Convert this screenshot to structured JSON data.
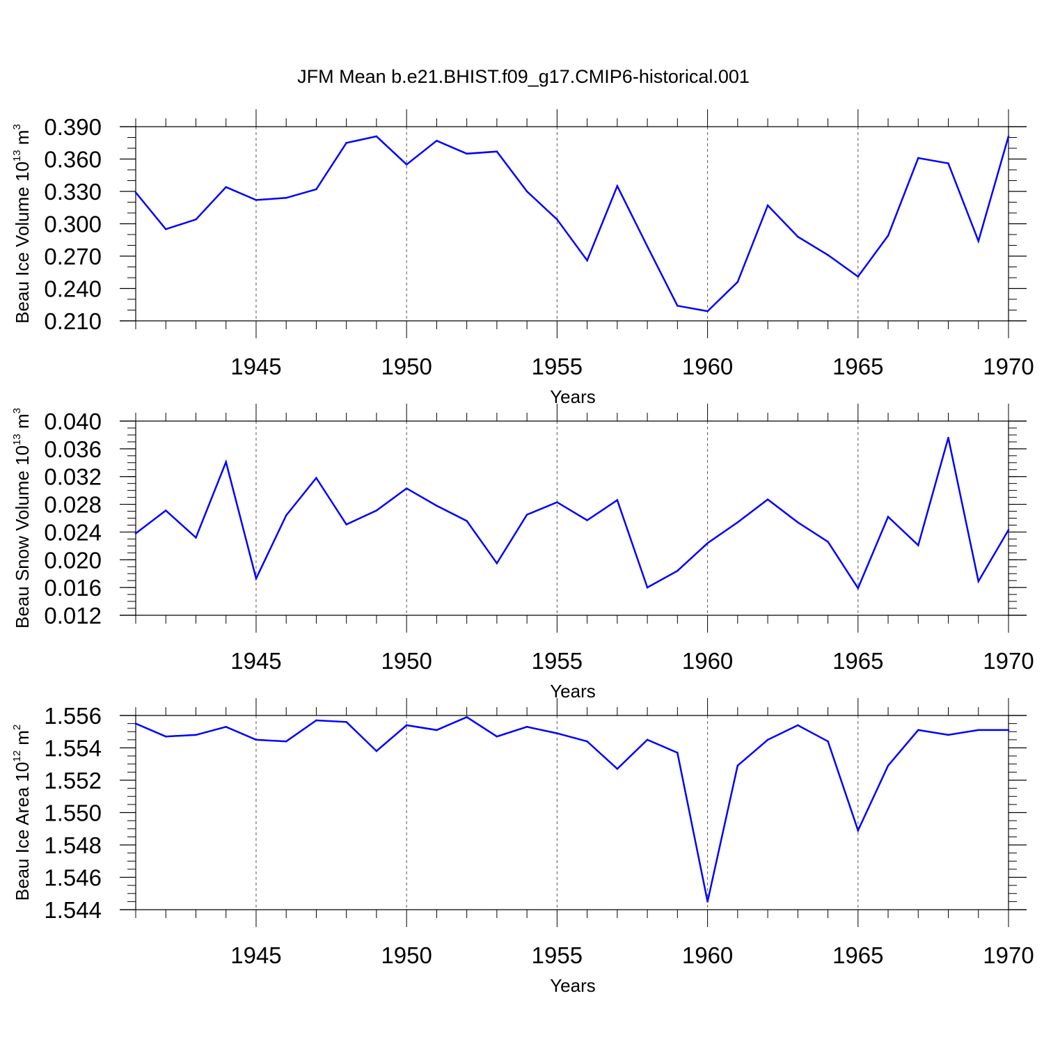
{
  "figure": {
    "title": "JFM Mean b.e21.BHIST.f09_g17.CMIP6-historical.001",
    "line_color": "#0000ff"
  },
  "chart_data": [
    {
      "type": "line",
      "title": "JFM Mean b.e21.BHIST.f09_g17.CMIP6-historical.001",
      "xlabel": "Years",
      "ylabel": {
        "main": "Beau Ice Volume 10",
        "exponent": "13",
        "unit": " m",
        "unit_exponent": "3"
      },
      "xlim": [
        1941,
        1970
      ],
      "ylim": [
        0.21,
        0.39
      ],
      "xticks": [
        1945,
        1950,
        1955,
        1960,
        1965,
        1970
      ],
      "xtick_labels": [
        "1945",
        "1950",
        "1955",
        "1960",
        "1965",
        "1970"
      ],
      "yticks": [
        0.21,
        0.24,
        0.27,
        0.3,
        0.33,
        0.36,
        0.39
      ],
      "ytick_labels": [
        "0.210",
        "0.240",
        "0.270",
        "0.300",
        "0.330",
        "0.360",
        "0.390"
      ],
      "y_minor_step": 0.01,
      "x": [
        1941,
        1942,
        1943,
        1944,
        1945,
        1946,
        1947,
        1948,
        1949,
        1950,
        1951,
        1952,
        1953,
        1954,
        1955,
        1956,
        1957,
        1958,
        1959,
        1960,
        1961,
        1962,
        1963,
        1964,
        1965,
        1966,
        1967,
        1968,
        1969,
        1970
      ],
      "series": [
        {
          "name": "Beau Ice Volume",
          "values": [
            0.329,
            0.295,
            0.304,
            0.334,
            0.322,
            0.324,
            0.332,
            0.375,
            0.381,
            0.355,
            0.377,
            0.365,
            0.367,
            0.33,
            0.304,
            0.266,
            0.335,
            0.279,
            0.224,
            0.219,
            0.246,
            0.317,
            0.288,
            0.271,
            0.251,
            0.289,
            0.361,
            0.356,
            0.284,
            0.381
          ]
        }
      ]
    },
    {
      "type": "line",
      "xlabel": "Years",
      "ylabel": {
        "main": "Beau Snow Volume 10",
        "exponent": "13",
        "unit": " m",
        "unit_exponent": "3"
      },
      "xlim": [
        1941,
        1970
      ],
      "ylim": [
        0.012,
        0.04
      ],
      "xticks": [
        1945,
        1950,
        1955,
        1960,
        1965,
        1970
      ],
      "xtick_labels": [
        "1945",
        "1950",
        "1955",
        "1960",
        "1965",
        "1970"
      ],
      "yticks": [
        0.012,
        0.016,
        0.02,
        0.024,
        0.028,
        0.032,
        0.036,
        0.04
      ],
      "ytick_labels": [
        "0.012",
        "0.016",
        "0.020",
        "0.024",
        "0.028",
        "0.032",
        "0.036",
        "0.040"
      ],
      "y_minor_step": 0.001,
      "x": [
        1941,
        1942,
        1943,
        1944,
        1945,
        1946,
        1947,
        1948,
        1949,
        1950,
        1951,
        1952,
        1953,
        1954,
        1955,
        1956,
        1957,
        1958,
        1959,
        1960,
        1961,
        1962,
        1963,
        1964,
        1965,
        1966,
        1967,
        1968,
        1969,
        1970
      ],
      "series": [
        {
          "name": "Beau Snow Volume",
          "values": [
            0.0238,
            0.0271,
            0.0232,
            0.0341,
            0.0173,
            0.0264,
            0.0318,
            0.0251,
            0.0271,
            0.0303,
            0.0278,
            0.0256,
            0.0195,
            0.0265,
            0.0283,
            0.0257,
            0.0286,
            0.016,
            0.0184,
            0.0224,
            0.0254,
            0.0287,
            0.0254,
            0.0226,
            0.0159,
            0.0262,
            0.0221,
            0.0376,
            0.0169,
            0.0243
          ]
        }
      ]
    },
    {
      "type": "line",
      "xlabel": "Years",
      "ylabel": {
        "main": "Beau Ice Area 10",
        "exponent": "12",
        "unit": " m",
        "unit_exponent": "2"
      },
      "xlim": [
        1941,
        1970
      ],
      "ylim": [
        1.544,
        1.556
      ],
      "xticks": [
        1945,
        1950,
        1955,
        1960,
        1965,
        1970
      ],
      "xtick_labels": [
        "1945",
        "1950",
        "1955",
        "1960",
        "1965",
        "1970"
      ],
      "yticks": [
        1.544,
        1.546,
        1.548,
        1.55,
        1.552,
        1.554,
        1.556
      ],
      "ytick_labels": [
        "1.544",
        "1.546",
        "1.548",
        "1.550",
        "1.552",
        "1.554",
        "1.556"
      ],
      "y_minor_step": 0.0005,
      "x": [
        1941,
        1942,
        1943,
        1944,
        1945,
        1946,
        1947,
        1948,
        1949,
        1950,
        1951,
        1952,
        1953,
        1954,
        1955,
        1956,
        1957,
        1958,
        1959,
        1960,
        1961,
        1962,
        1963,
        1964,
        1965,
        1966,
        1967,
        1968,
        1969,
        1970
      ],
      "series": [
        {
          "name": "Beau Ice Area",
          "values": [
            1.5555,
            1.5547,
            1.5548,
            1.5553,
            1.5545,
            1.5544,
            1.5557,
            1.5556,
            1.5538,
            1.5554,
            1.5551,
            1.5559,
            1.5547,
            1.5553,
            1.5549,
            1.5544,
            1.5527,
            1.5545,
            1.5537,
            1.5445,
            1.5529,
            1.5545,
            1.5554,
            1.5544,
            1.5489,
            1.5529,
            1.5551,
            1.5548,
            1.5551,
            1.5551
          ]
        }
      ]
    }
  ]
}
